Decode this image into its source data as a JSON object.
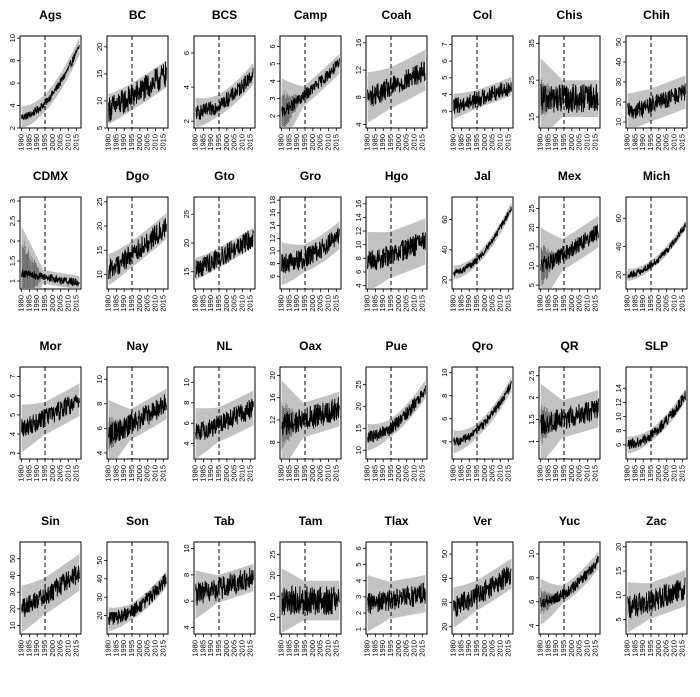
{
  "chart_data": [
    {
      "type": "line",
      "title": "Ags",
      "ylim": [
        2,
        10.2
      ],
      "yticks": [
        2,
        4,
        6,
        8,
        10
      ],
      "shape": "exp",
      "start": 3.0,
      "end": 9.3,
      "noise": 0.35,
      "band": 0.6,
      "early": 0.2
    },
    {
      "type": "line",
      "title": "BC",
      "ylim": [
        5,
        22
      ],
      "yticks": [
        5,
        10,
        15,
        20
      ],
      "shape": "up",
      "start": 8.5,
      "end": 15,
      "noise": 2.4,
      "band": 1.3,
      "early": 0.25
    },
    {
      "type": "line",
      "title": "BCS",
      "ylim": [
        1.6,
        7
      ],
      "yticks": [
        2,
        4,
        6
      ],
      "shape": "exp",
      "start": 2.5,
      "end": 4.8,
      "noise": 0.45,
      "band": 0.4,
      "early": 0.25
    },
    {
      "type": "line",
      "title": "Camp",
      "ylim": [
        1.3,
        6.6
      ],
      "yticks": [
        2,
        3,
        4,
        5,
        6
      ],
      "shape": "up",
      "start": 2.2,
      "end": 5.0,
      "noise": 0.35,
      "band": 0.4,
      "early": 1.4
    },
    {
      "type": "line",
      "title": "Coah",
      "ylim": [
        3.5,
        17
      ],
      "yticks": [
        4,
        8,
        12,
        16
      ],
      "shape": "up",
      "start": 8,
      "end": 12,
      "noise": 1.6,
      "band": 2.2,
      "early": 0.7
    },
    {
      "type": "line",
      "title": "Col",
      "ylim": [
        2,
        7.5
      ],
      "yticks": [
        3,
        4,
        5,
        6,
        7
      ],
      "shape": "up",
      "start": 3.3,
      "end": 4.5,
      "noise": 0.5,
      "band": 0.3,
      "early": 0.2
    },
    {
      "type": "line",
      "title": "Chis",
      "ylim": [
        12,
        37
      ],
      "yticks": [
        15,
        25,
        35
      ],
      "shape": "flat",
      "start": 20,
      "end": 20,
      "noise": 4,
      "band": 3,
      "early": 6
    },
    {
      "type": "line",
      "title": "Chih",
      "ylim": [
        7,
        53
      ],
      "yticks": [
        10,
        20,
        30,
        40,
        50
      ],
      "shape": "up",
      "start": 15,
      "end": 25,
      "noise": 4.5,
      "band": 6,
      "early": 1
    },
    {
      "type": "line",
      "title": "CDMX",
      "ylim": [
        0.8,
        3.1
      ],
      "yticks": [
        1.0,
        1.5,
        2.0,
        2.5,
        3.0
      ],
      "shape": "down",
      "start": 1.2,
      "end": 0.95,
      "noise": 0.1,
      "band": 0.12,
      "early": 1.0
    },
    {
      "type": "line",
      "title": "Dgo",
      "ylim": [
        7,
        26
      ],
      "yticks": [
        10,
        15,
        20,
        25
      ],
      "shape": "up",
      "start": 11,
      "end": 20,
      "noise": 2.2,
      "band": 1.6,
      "early": 0.5
    },
    {
      "type": "line",
      "title": "Gto",
      "ylim": [
        12,
        28
      ],
      "yticks": [
        15,
        20,
        25
      ],
      "shape": "up",
      "start": 15.5,
      "end": 21,
      "noise": 1.8,
      "band": 0.8,
      "early": 0.2
    },
    {
      "type": "line",
      "title": "Gro",
      "ylim": [
        4,
        18.5
      ],
      "yticks": [
        6,
        8,
        10,
        12,
        14,
        16,
        18
      ],
      "shape": "exp",
      "start": 8,
      "end": 12.5,
      "noise": 1.6,
      "band": 1.4,
      "early": 1.2
    },
    {
      "type": "line",
      "title": "Hgo",
      "ylim": [
        3.5,
        17
      ],
      "yticks": [
        4,
        6,
        8,
        10,
        12,
        14,
        16
      ],
      "shape": "up",
      "start": 7.5,
      "end": 10.5,
      "noise": 1.6,
      "band": 2.6,
      "early": 1.0
    },
    {
      "type": "line",
      "title": "Jal",
      "ylim": [
        14,
        75
      ],
      "yticks": [
        20,
        40,
        60
      ],
      "shape": "exp",
      "start": 25,
      "end": 68,
      "noise": 2.2,
      "band": 2.5,
      "early": 1
    },
    {
      "type": "line",
      "title": "Mex",
      "ylim": [
        4,
        28
      ],
      "yticks": [
        5,
        10,
        15,
        20,
        25
      ],
      "shape": "up",
      "start": 10,
      "end": 19,
      "noise": 2.2,
      "band": 3,
      "early": 6
    },
    {
      "type": "line",
      "title": "Mich",
      "ylim": [
        10,
        75
      ],
      "yticks": [
        20,
        40,
        60
      ],
      "shape": "exp",
      "start": 20,
      "end": 55,
      "noise": 2.5,
      "band": 2,
      "early": 1
    },
    {
      "type": "line",
      "title": "Mor",
      "ylim": [
        2.7,
        7.5
      ],
      "yticks": [
        3,
        4,
        5,
        6,
        7
      ],
      "shape": "up",
      "start": 4.3,
      "end": 5.8,
      "noise": 0.5,
      "band": 0.6,
      "early": 0.4
    },
    {
      "type": "line",
      "title": "Nay",
      "ylim": [
        3.5,
        11
      ],
      "yticks": [
        4,
        6,
        8,
        10
      ],
      "shape": "up",
      "start": 5.5,
      "end": 8,
      "noise": 0.9,
      "band": 0.8,
      "early": 1.6
    },
    {
      "type": "line",
      "title": "NL",
      "ylim": [
        2.5,
        11.5
      ],
      "yticks": [
        4,
        6,
        8,
        10
      ],
      "shape": "up",
      "start": 5,
      "end": 7.5,
      "noise": 1.0,
      "band": 1.2,
      "early": 0.8
    },
    {
      "type": "line",
      "title": "Oax",
      "ylim": [
        5,
        21.5
      ],
      "yticks": [
        8,
        12,
        16,
        20
      ],
      "shape": "up",
      "start": 11,
      "end": 14,
      "noise": 2.2,
      "band": 2,
      "early": 5
    },
    {
      "type": "line",
      "title": "Pue",
      "ylim": [
        8,
        29
      ],
      "yticks": [
        10,
        15,
        20,
        25
      ],
      "shape": "exp",
      "start": 13,
      "end": 24,
      "noise": 1.5,
      "band": 1.3,
      "early": 1
    },
    {
      "type": "line",
      "title": "Qro",
      "ylim": [
        2.5,
        10.5
      ],
      "yticks": [
        4,
        6,
        8,
        10
      ],
      "shape": "exp",
      "start": 4,
      "end": 9,
      "noise": 0.4,
      "band": 0.4,
      "early": 0.4
    },
    {
      "type": "line",
      "title": "QR",
      "ylim": [
        0.6,
        2.7
      ],
      "yticks": [
        1.0,
        1.5,
        2.0,
        2.5
      ],
      "shape": "up",
      "start": 1.4,
      "end": 1.75,
      "noise": 0.25,
      "band": 0.3,
      "early": 0.5
    },
    {
      "type": "line",
      "title": "SLP",
      "ylim": [
        4,
        17
      ],
      "yticks": [
        6,
        8,
        10,
        12,
        14
      ],
      "shape": "exp",
      "start": 6,
      "end": 13,
      "noise": 0.8,
      "band": 0.5,
      "early": 0.3
    },
    {
      "type": "line",
      "title": "Sin",
      "ylim": [
        5,
        60
      ],
      "yticks": [
        10,
        20,
        30,
        40,
        50
      ],
      "shape": "up",
      "start": 20,
      "end": 42,
      "noise": 6,
      "band": 8,
      "early": 3
    },
    {
      "type": "line",
      "title": "Son",
      "ylim": [
        10,
        60
      ],
      "yticks": [
        20,
        30,
        40,
        50
      ],
      "shape": "exp",
      "start": 18,
      "end": 40,
      "noise": 4,
      "band": 2.5,
      "early": 2
    },
    {
      "type": "line",
      "title": "Tab",
      "ylim": [
        3.5,
        10.5
      ],
      "yticks": [
        4,
        6,
        8,
        10
      ],
      "shape": "up",
      "start": 6.5,
      "end": 7.8,
      "noise": 0.9,
      "band": 0.6,
      "early": 0.8
    },
    {
      "type": "line",
      "title": "Tam",
      "ylim": [
        6,
        28
      ],
      "yticks": [
        10,
        15,
        20,
        25
      ],
      "shape": "flat",
      "start": 14,
      "end": 14,
      "noise": 3.5,
      "band": 3,
      "early": 3
    },
    {
      "type": "line",
      "title": "Tlax",
      "ylim": [
        0.7,
        6.4
      ],
      "yticks": [
        1,
        2,
        3,
        4,
        5,
        6
      ],
      "shape": "up",
      "start": 2.6,
      "end": 3.2,
      "noise": 0.7,
      "band": 0.8,
      "early": 0.6
    },
    {
      "type": "line",
      "title": "Ver",
      "ylim": [
        17,
        55
      ],
      "yticks": [
        20,
        30,
        40,
        50
      ],
      "shape": "up",
      "start": 28,
      "end": 42,
      "noise": 4.5,
      "band": 4,
      "early": 2
    },
    {
      "type": "line",
      "title": "Yuc",
      "ylim": [
        3.3,
        11
      ],
      "yticks": [
        4,
        6,
        8,
        10
      ],
      "shape": "exp",
      "start": 6,
      "end": 9.5,
      "noise": 0.5,
      "band": 0.5,
      "early": 1.2
    },
    {
      "type": "line",
      "title": "Zac",
      "ylim": [
        2,
        21
      ],
      "yticks": [
        5,
        10,
        15,
        20
      ],
      "shape": "up",
      "start": 7.5,
      "end": 11.5,
      "noise": 2.4,
      "band": 2.5,
      "early": 1.5
    }
  ],
  "xticks": [
    "1980",
    "1985",
    "1990",
    "1995",
    "2000",
    "2005",
    "2010",
    "2015"
  ],
  "xlim": [
    1979,
    2018
  ],
  "dashed_line_x": 1995,
  "colors": {
    "main": "#000000",
    "band": "#8f8f8f",
    "early_band": "#6a6a6a",
    "axis": "#000000"
  }
}
